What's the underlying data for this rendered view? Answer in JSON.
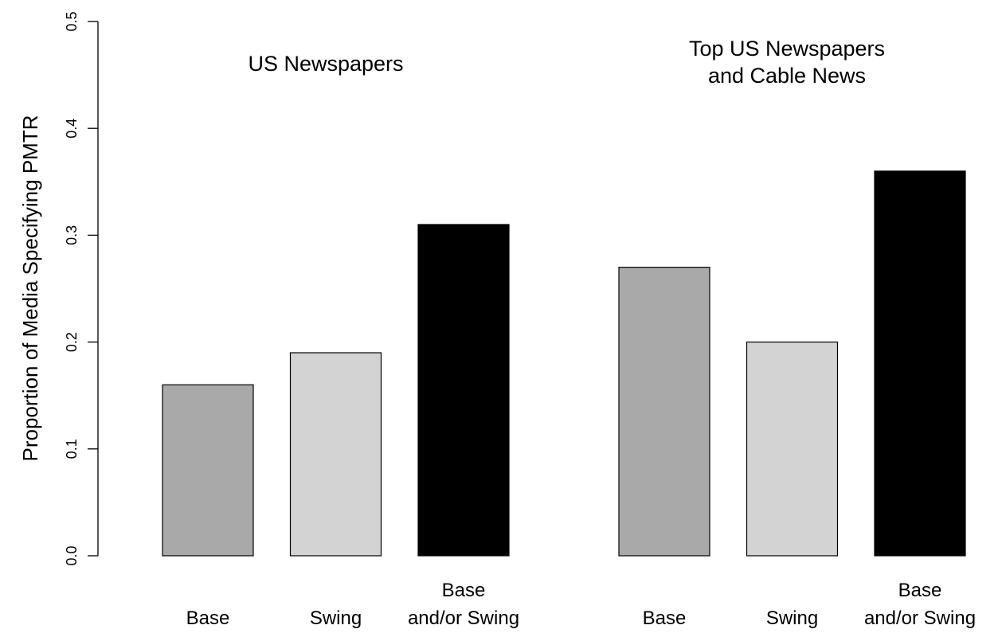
{
  "chart_data": {
    "type": "bar",
    "ylabel": "Proportion of Media Specifying PMTR",
    "ylim": [
      0,
      0.5
    ],
    "yticks": [
      "0.0",
      "0.1",
      "0.2",
      "0.3",
      "0.4",
      "0.5"
    ],
    "grid": false,
    "groups": [
      {
        "title_lines": [
          "US Newspapers"
        ],
        "bars": [
          {
            "label_lines": [
              "Base"
            ],
            "value": 0.16,
            "color": "#a9a9a9"
          },
          {
            "label_lines": [
              "Swing"
            ],
            "value": 0.19,
            "color": "#d3d3d3"
          },
          {
            "label_lines": [
              "Base",
              "and/or Swing"
            ],
            "value": 0.31,
            "color": "#000000"
          }
        ]
      },
      {
        "title_lines": [
          "Top US Newspapers",
          "and Cable News"
        ],
        "bars": [
          {
            "label_lines": [
              "Base"
            ],
            "value": 0.27,
            "color": "#a9a9a9"
          },
          {
            "label_lines": [
              "Swing"
            ],
            "value": 0.2,
            "color": "#d3d3d3"
          },
          {
            "label_lines": [
              "Base",
              "and/or Swing"
            ],
            "value": 0.36,
            "color": "#000000"
          }
        ]
      }
    ]
  }
}
